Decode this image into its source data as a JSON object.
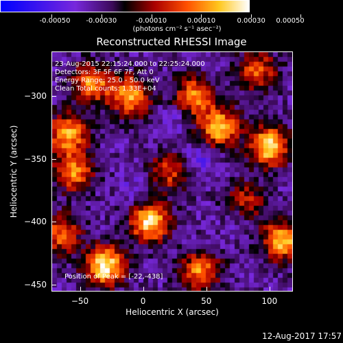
{
  "colorbar": {
    "tick_labels": [
      "-0.00050",
      "-0.00030",
      "-0.00010",
      "0.00010",
      "0.00030",
      "0.00050"
    ],
    "tick_values": [
      -0.0005,
      -0.0003,
      -0.0001,
      0.0001,
      0.0003,
      0.0005
    ],
    "units": "(photons cm⁻² s⁻¹ asec⁻²)",
    "range": [
      -0.0005,
      0.0005
    ]
  },
  "plot": {
    "title": "Reconstructed RHESSI Image",
    "annotations": {
      "time": "23-Aug-2015 22:15:24.000 to 22:25:24.000",
      "detectors": "Detectors: 3F 5F 6F 7F, Att 0",
      "energy": "Energy Range: 25.0 - 50.0 keV",
      "clean": "Clean     Total counts: 1.33E+04",
      "peak": "Position of Peak = [-22,-438]"
    },
    "xlabel": "Heliocentric X (arcsec)",
    "ylabel": "Heliocentric Y (arcsec)"
  },
  "chart_data": {
    "type": "heatmap",
    "title": "Reconstructed RHESSI Image",
    "xlabel": "Heliocentric X (arcsec)",
    "ylabel": "Heliocentric Y (arcsec)",
    "xlim": [
      -72,
      118
    ],
    "ylim": [
      -455,
      -265
    ],
    "xticks": [
      -50,
      0,
      50,
      100
    ],
    "yticks": [
      -300,
      -350,
      -400,
      -450
    ],
    "colorbar_range": [
      -0.0005,
      0.0005
    ],
    "peak_position": [
      -22,
      -438
    ],
    "bright_sources": [
      {
        "x": -30,
        "y": -435,
        "level": 0.0005
      },
      {
        "x": 5,
        "y": -400,
        "level": 0.00045
      },
      {
        "x": 100,
        "y": -340,
        "level": 0.00045
      },
      {
        "x": 60,
        "y": -325,
        "level": 0.0004
      },
      {
        "x": 110,
        "y": -415,
        "level": 0.0004
      },
      {
        "x": -60,
        "y": -330,
        "level": 0.00035
      },
      {
        "x": -10,
        "y": -300,
        "level": 0.00035
      },
      {
        "x": 40,
        "y": -300,
        "level": 0.0003
      },
      {
        "x": 45,
        "y": -440,
        "level": 0.0003
      },
      {
        "x": -55,
        "y": -360,
        "level": 0.0003
      },
      {
        "x": 90,
        "y": -280,
        "level": 0.00025
      },
      {
        "x": -40,
        "y": -290,
        "level": 0.0003
      },
      {
        "x": 80,
        "y": -385,
        "level": 0.0002
      },
      {
        "x": 20,
        "y": -360,
        "level": 0.0002
      },
      {
        "x": -65,
        "y": -410,
        "level": 0.00025
      }
    ],
    "dark_regions": [
      {
        "x": 45,
        "y": -350,
        "level": -0.00015
      },
      {
        "x": 75,
        "y": -395,
        "level": -0.00012
      },
      {
        "x": 25,
        "y": -320,
        "level": -0.0001
      },
      {
        "x": -5,
        "y": -375,
        "level": -0.0001
      }
    ]
  },
  "footer": {
    "timestamp": "12-Aug-2017 17:57"
  }
}
